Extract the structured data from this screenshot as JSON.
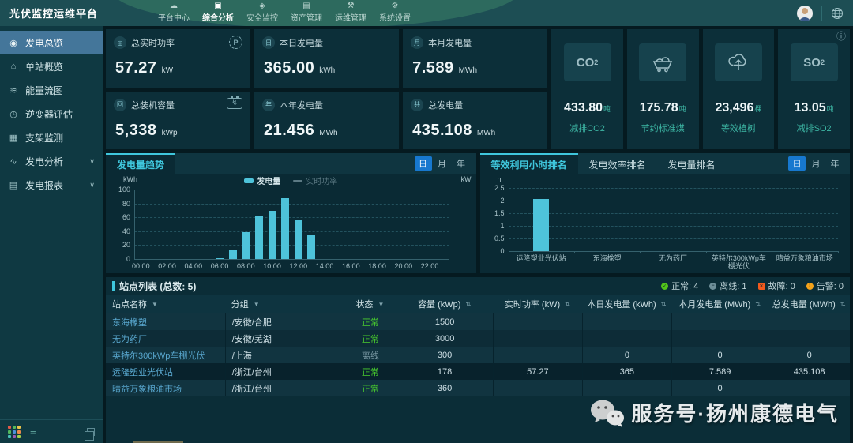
{
  "app": {
    "logo": "光伏监控运维平台"
  },
  "nav": {
    "items": [
      {
        "id": "platform-center",
        "icon": "platform-center-icon",
        "glyph": "☁",
        "label": "平台中心",
        "active": false
      },
      {
        "id": "analysis",
        "icon": "analysis-icon",
        "glyph": "▣",
        "label": "综合分析",
        "active": true
      },
      {
        "id": "security-monitor",
        "icon": "shield-icon",
        "glyph": "◈",
        "label": "安全监控",
        "active": false
      },
      {
        "id": "asset-management",
        "icon": "database-icon",
        "glyph": "▤",
        "label": "资产管理",
        "active": false
      },
      {
        "id": "ops-management",
        "icon": "tools-icon",
        "glyph": "⚒",
        "label": "运维管理",
        "active": false
      },
      {
        "id": "system-settings",
        "icon": "gear-icon",
        "glyph": "⚙",
        "label": "系统设置",
        "active": false
      }
    ]
  },
  "sidebar": {
    "items": [
      {
        "id": "power-overview",
        "icon": "dial-icon",
        "glyph": "◉",
        "label": "发电总览",
        "active": true,
        "chevron": false
      },
      {
        "id": "station-overview",
        "icon": "home-icon",
        "glyph": "⌂",
        "label": "单站概览",
        "active": false,
        "chevron": false
      },
      {
        "id": "energy-flow",
        "icon": "flow-icon",
        "glyph": "≋",
        "label": "能量流图",
        "active": false,
        "chevron": false
      },
      {
        "id": "inverter-eval",
        "icon": "clock-icon",
        "glyph": "◷",
        "label": "逆变器评估",
        "active": false,
        "chevron": false
      },
      {
        "id": "bracket-monitor",
        "icon": "panel-grid-icon",
        "glyph": "▦",
        "label": "支架监测",
        "active": false,
        "chevron": false
      },
      {
        "id": "power-analysis",
        "icon": "wave-icon",
        "glyph": "∿",
        "label": "发电分析",
        "active": false,
        "chevron": true
      },
      {
        "id": "power-report",
        "icon": "report-icon",
        "glyph": "▤",
        "label": "发电报表",
        "active": false,
        "chevron": true
      }
    ],
    "footer": {
      "apps_grid_colors": [
        "#e25b4a",
        "#53b85c",
        "#e9c34a",
        "#53b85c",
        "#4a90d9",
        "#e9884a",
        "#4ac3b8",
        "#9b59b6",
        "#a3cf4a"
      ]
    }
  },
  "stats": {
    "info_icon_glyph": "ⓘ",
    "cards": [
      {
        "id": "total-realtime-power",
        "chip": "◎",
        "label": "总实时功率",
        "value": "57.27",
        "unit": "kW",
        "corner": "power"
      },
      {
        "id": "today-generation",
        "chip": "日",
        "label": "本日发电量",
        "value": "365.00",
        "unit": "kWh",
        "corner": ""
      },
      {
        "id": "month-generation",
        "chip": "月",
        "label": "本月发电量",
        "value": "7.589",
        "unit": "MWh",
        "corner": ""
      },
      {
        "id": "installed-capacity",
        "chip": "回",
        "label": "总装机容量",
        "value": "5,338",
        "unit": "kWp",
        "corner": "batt"
      },
      {
        "id": "year-generation",
        "chip": "年",
        "label": "本年发电量",
        "value": "21.456",
        "unit": "MWh",
        "corner": ""
      },
      {
        "id": "total-generation",
        "chip": "共",
        "label": "总发电量",
        "value": "435.108",
        "unit": "MWh",
        "corner": ""
      }
    ],
    "env_cards": [
      {
        "id": "co2-reduction",
        "tile": "text",
        "tile_text": "CO",
        "tile_sub": "2",
        "icon": "co2-icon",
        "value": "433.80",
        "unit": "吨",
        "label": "减排CO2"
      },
      {
        "id": "coal-saving",
        "tile": "coal",
        "tile_text": "",
        "tile_sub": "",
        "icon": "coal-cart-icon",
        "value": "175.78",
        "unit": "吨",
        "label": "节约标准煤"
      },
      {
        "id": "tree-equivalent",
        "tile": "tree",
        "tile_text": "",
        "tile_sub": "",
        "icon": "tree-icon",
        "value": "23,496",
        "unit": "棵",
        "label": "等效植树"
      },
      {
        "id": "so2-reduction",
        "tile": "text",
        "tile_text": "SO",
        "tile_sub": "2",
        "icon": "so2-icon",
        "value": "13.05",
        "unit": "吨",
        "label": "减排SO2"
      }
    ]
  },
  "panels": {
    "trend": {
      "tab": "发电量趋势",
      "range_tabs": [
        "日",
        "月",
        "年"
      ],
      "active_range": "日"
    },
    "ranking": {
      "tabs": [
        "等效利用小时排名",
        "发电效率排名",
        "发电量排名"
      ],
      "active_tab": "等效利用小时排名",
      "range_tabs": [
        "日",
        "月",
        "年"
      ],
      "active_range": "日"
    }
  },
  "chart_data": [
    {
      "type": "bar",
      "title": "发电量趋势",
      "ylabel": "kWh",
      "ylabel_right": "kW",
      "x": [
        "00:00",
        "01:00",
        "02:00",
        "03:00",
        "04:00",
        "05:00",
        "06:00",
        "07:00",
        "08:00",
        "09:00",
        "10:00",
        "11:00",
        "12:00",
        "13:00",
        "14:00",
        "15:00",
        "16:00",
        "17:00",
        "18:00",
        "19:00",
        "20:00",
        "21:00",
        "22:00",
        "23:00"
      ],
      "label_every": 2,
      "series": [
        {
          "name": "发电量",
          "color": "#4ec3da",
          "enabled": true,
          "values": [
            0,
            0,
            0,
            0,
            0,
            0,
            1.5,
            12,
            39,
            62,
            69,
            88,
            56,
            34,
            0,
            0,
            0,
            0,
            0,
            0,
            0,
            0,
            0,
            0
          ]
        },
        {
          "name": "实时功率",
          "color": "#5c7a84",
          "enabled": false,
          "values": []
        }
      ],
      "ylim": [
        0,
        100
      ],
      "ytick": 20,
      "grid": "dashed-horizontal",
      "legend_position": "top-center"
    },
    {
      "type": "bar",
      "title": "等效利用小时排名",
      "ylabel": "h",
      "categories": [
        "运隆塑业光伏站",
        "东海橡塑",
        "无为药厂",
        "英特尔300kWp车棚光伏",
        "晴益万象粮油市场"
      ],
      "values": [
        2.05,
        0,
        0,
        0,
        0
      ],
      "ylim": [
        0,
        2.5
      ],
      "ytick": 0.5,
      "grid": "dashed-horizontal"
    }
  ],
  "station_table": {
    "title": "站点列表 (总数: 5)",
    "status_badges": [
      {
        "label": "正常",
        "count": "4",
        "color": "#52c41a",
        "shape": "circle",
        "mark": "✓"
      },
      {
        "label": "离线",
        "count": "1",
        "color": "#6e8f99",
        "shape": "circle",
        "mark": "−"
      },
      {
        "label": "故障",
        "count": "0",
        "color": "#f25a1d",
        "shape": "square",
        "mark": "✕"
      },
      {
        "label": "告警",
        "count": "0",
        "color": "#f5a31a",
        "shape": "circle",
        "mark": "!"
      }
    ],
    "columns": [
      {
        "label": "站点名称",
        "icon": "filter",
        "width": "16%",
        "align": "left"
      },
      {
        "label": "分组",
        "icon": "filter",
        "width": "16%",
        "align": "left"
      },
      {
        "label": "状态",
        "icon": "filter",
        "width": "7%",
        "align": "center"
      },
      {
        "label": "容量 (kWp)",
        "icon": "sort",
        "width": "13%",
        "align": "center"
      },
      {
        "label": "实时功率 (kW)",
        "icon": "sort",
        "width": "12%",
        "align": "center"
      },
      {
        "label": "本日发电量 (kWh)",
        "icon": "sort",
        "width": "12%",
        "align": "center"
      },
      {
        "label": "本月发电量 (MWh)",
        "icon": "sort",
        "width": "13%",
        "align": "center"
      },
      {
        "label": "总发电量 (MWh)",
        "icon": "sort",
        "width": "11%",
        "align": "center"
      }
    ],
    "rows": [
      {
        "name": "东海橡塑",
        "group": "/安徽/合肥",
        "status": "正常",
        "capacity": "1500",
        "power": "",
        "today": "",
        "month": "",
        "total": "",
        "selected": false
      },
      {
        "name": "无为药厂",
        "group": "/安徽/芜湖",
        "status": "正常",
        "capacity": "3000",
        "power": "",
        "today": "",
        "month": "",
        "total": "",
        "selected": false
      },
      {
        "name": "英特尔300kWp车棚光伏",
        "group": "/上海",
        "status": "离线",
        "capacity": "300",
        "power": "",
        "today": "0",
        "month": "0",
        "total": "0",
        "selected": false
      },
      {
        "name": "运隆塑业光伏站",
        "group": "/浙江/台州",
        "status": "正常",
        "capacity": "178",
        "power": "57.27",
        "today": "365",
        "month": "7.589",
        "total": "435.108",
        "selected": true
      },
      {
        "name": "晴益万象粮油市场",
        "group": "/浙江/台州",
        "status": "正常",
        "capacity": "360",
        "power": "",
        "today": "",
        "month": "0",
        "total": "",
        "selected": false
      }
    ]
  },
  "watermark": {
    "text": "服务号·扬州康德电气"
  },
  "colors": {
    "accent_teal": "#3fc6dc",
    "bar_fill": "#4ec3da",
    "range_active_blue": "#1778cf",
    "status_normal": "#49cc2e",
    "status_offline": "#7695a0",
    "unit_green": "#3db6a4",
    "sidebar_active": "#44769a",
    "nav_bg": "#1d4e54",
    "panel_bg": "#0a2a34",
    "card_bg": "#0c2f39"
  }
}
